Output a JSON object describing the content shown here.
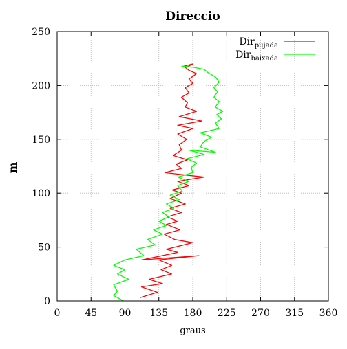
{
  "chart_data": {
    "type": "line",
    "title": "Direccio",
    "xlabel": "graus",
    "ylabel": "m",
    "xlim": [
      0,
      360
    ],
    "ylim": [
      0,
      250
    ],
    "xticks": [
      "0",
      "45",
      "90",
      "135",
      "180",
      "225",
      "270",
      "315",
      "360"
    ],
    "yticks": [
      "0",
      "50",
      "100",
      "150",
      "200",
      "250"
    ],
    "grid": true,
    "legend_position": "top-right",
    "series": [
      {
        "name": "Dir",
        "name_sub": "pujada",
        "color": "#ff0000",
        "points": [
          [
            110,
            3
          ],
          [
            133,
            8
          ],
          [
            112,
            13
          ],
          [
            140,
            16
          ],
          [
            122,
            20
          ],
          [
            152,
            25
          ],
          [
            138,
            29
          ],
          [
            152,
            33
          ],
          [
            135,
            38
          ],
          [
            188,
            42
          ],
          [
            112,
            38
          ],
          [
            160,
            45
          ],
          [
            145,
            48
          ],
          [
            180,
            54
          ],
          [
            156,
            57
          ],
          [
            142,
            62
          ],
          [
            163,
            66
          ],
          [
            145,
            71
          ],
          [
            160,
            74
          ],
          [
            146,
            78
          ],
          [
            165,
            82
          ],
          [
            150,
            86
          ],
          [
            170,
            90
          ],
          [
            150,
            95
          ],
          [
            165,
            100
          ],
          [
            153,
            103
          ],
          [
            175,
            107
          ],
          [
            160,
            111
          ],
          [
            195,
            115
          ],
          [
            143,
            119
          ],
          [
            165,
            123
          ],
          [
            158,
            127
          ],
          [
            173,
            131
          ],
          [
            154,
            135
          ],
          [
            165,
            140
          ],
          [
            162,
            145
          ],
          [
            172,
            150
          ],
          [
            160,
            155
          ],
          [
            180,
            160
          ],
          [
            160,
            163
          ],
          [
            192,
            167
          ],
          [
            162,
            171
          ],
          [
            185,
            176
          ],
          [
            170,
            180
          ],
          [
            173,
            184
          ],
          [
            165,
            189
          ],
          [
            175,
            193
          ],
          [
            170,
            198
          ],
          [
            180,
            202
          ],
          [
            175,
            206
          ],
          [
            185,
            211
          ],
          [
            175,
            214
          ],
          [
            168,
            218
          ],
          [
            180,
            220
          ],
          [
            172,
            217
          ]
        ],
        "points_note": "values read off axes: [graus, m]"
      },
      {
        "name": "Dir",
        "name_sub": "baixada",
        "color": "#00ff00",
        "points": [
          [
            88,
            0
          ],
          [
            75,
            5
          ],
          [
            80,
            9
          ],
          [
            75,
            15
          ],
          [
            95,
            20
          ],
          [
            80,
            25
          ],
          [
            90,
            29
          ],
          [
            75,
            33
          ],
          [
            90,
            38
          ],
          [
            115,
            42
          ],
          [
            105,
            48
          ],
          [
            130,
            52
          ],
          [
            120,
            57
          ],
          [
            140,
            62
          ],
          [
            128,
            66
          ],
          [
            145,
            70
          ],
          [
            135,
            74
          ],
          [
            148,
            78
          ],
          [
            140,
            82
          ],
          [
            155,
            86
          ],
          [
            145,
            90
          ],
          [
            162,
            94
          ],
          [
            150,
            98
          ],
          [
            166,
            102
          ],
          [
            160,
            107
          ],
          [
            175,
            111
          ],
          [
            160,
            115
          ],
          [
            180,
            119
          ],
          [
            178,
            124
          ],
          [
            185,
            128
          ],
          [
            172,
            132
          ],
          [
            195,
            136
          ],
          [
            175,
            140
          ],
          [
            210,
            138
          ],
          [
            190,
            143
          ],
          [
            195,
            148
          ],
          [
            205,
            152
          ],
          [
            190,
            156
          ],
          [
            215,
            160
          ],
          [
            210,
            165
          ],
          [
            218,
            169
          ],
          [
            212,
            173
          ],
          [
            220,
            176
          ],
          [
            210,
            180
          ],
          [
            215,
            185
          ],
          [
            208,
            189
          ],
          [
            213,
            194
          ],
          [
            208,
            198
          ],
          [
            215,
            203
          ],
          [
            210,
            208
          ],
          [
            200,
            212
          ],
          [
            195,
            215
          ],
          [
            180,
            217
          ],
          [
            165,
            218
          ]
        ]
      }
    ]
  }
}
